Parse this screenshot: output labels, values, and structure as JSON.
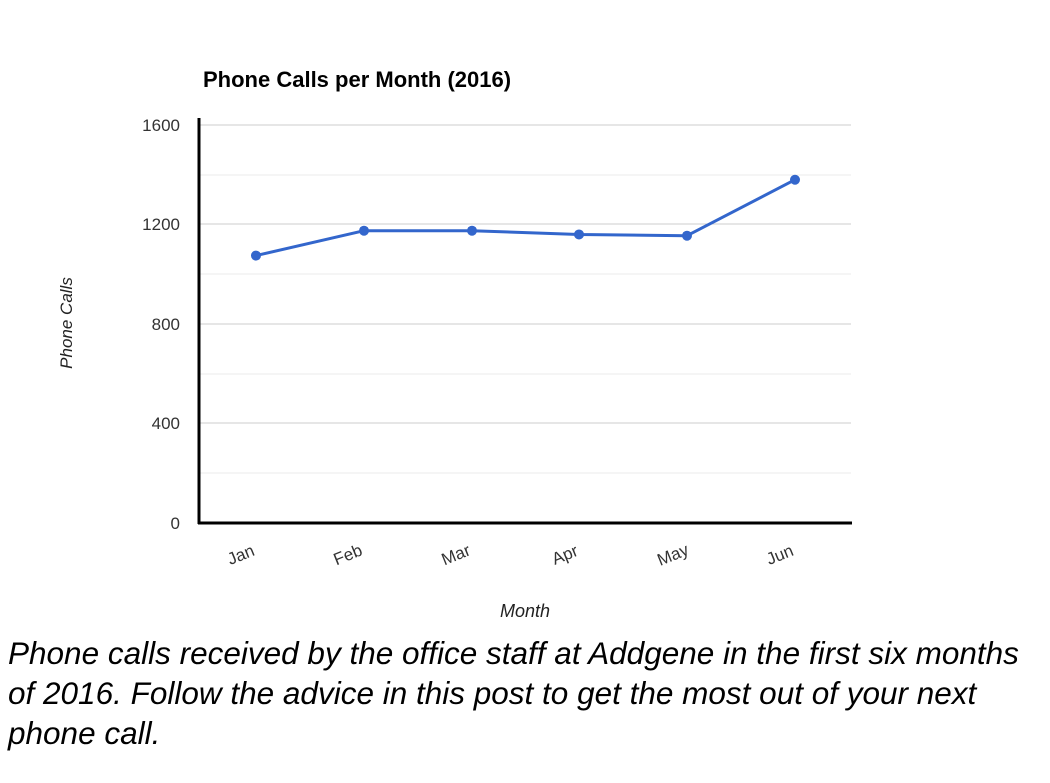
{
  "chart_data": {
    "type": "line",
    "title": "Phone Calls per Month (2016)",
    "xlabel": "Month",
    "ylabel": "Phone Calls",
    "categories": [
      "Jan",
      "Feb",
      "Mar",
      "Apr",
      "May",
      "Jun"
    ],
    "series": [
      {
        "values": [
          1075,
          1175,
          1175,
          1160,
          1155,
          1380
        ]
      }
    ],
    "ylim": [
      0,
      1600
    ],
    "yticks": [
      "1600",
      "1200",
      "800",
      "400",
      "0"
    ],
    "grid": true,
    "legend": "none",
    "line_color": "#3366cc"
  },
  "caption": "Phone calls received by the office staff at Addgene in the first six months of 2016. Follow the advice in this post to get the most out of your next phone call."
}
